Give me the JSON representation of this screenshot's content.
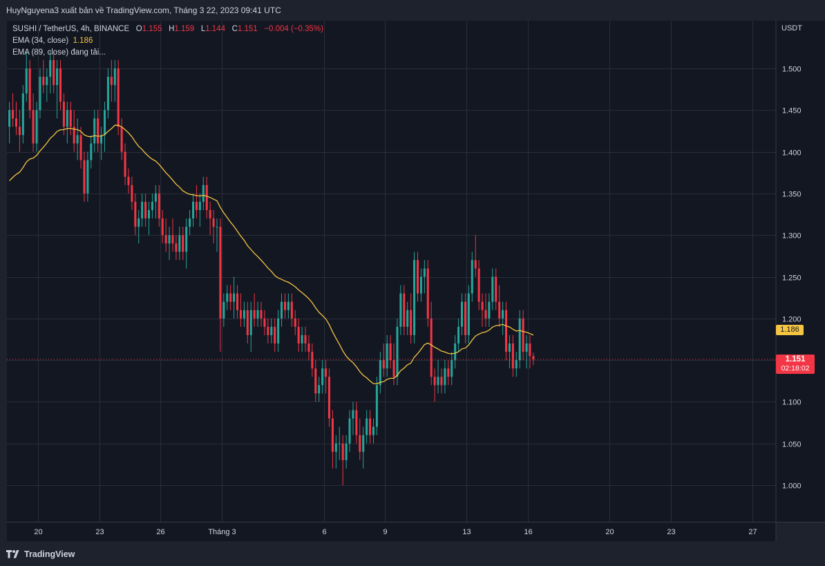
{
  "header": {
    "text": "HuyNguyena3 xuất bản về TradingView.com, Tháng 3 22, 2023 09:41 UTC"
  },
  "legend": {
    "symbol": "SUSHI / TetherUS, 4h, BINANCE",
    "o_label": "O",
    "o_value": "1.155",
    "h_label": "H",
    "h_value": "1.159",
    "l_label": "L",
    "l_value": "1.144",
    "c_label": "C",
    "c_value": "1.151",
    "change": "−0.004 (−0.35%)",
    "ema34_label": "EMA (34, close)",
    "ema34_value": "1.186",
    "ema89_label": "EMA (89, close) đang tải..."
  },
  "price_scale": {
    "currency": "USDT"
  },
  "tags": {
    "ema_value": "1.186",
    "last_price": "1.151",
    "countdown": "02:18:02"
  },
  "branding": {
    "logo_text": "TradingView"
  },
  "colors": {
    "up": "#26a69a",
    "down": "#f23645",
    "ema": "#f5c542",
    "background": "#131722",
    "grid": "#2a2e39"
  },
  "chart_data": {
    "type": "candlestick",
    "title": "SUSHI / TetherUS, 4h, BINANCE",
    "y_ticks": [
      1.0,
      1.05,
      1.1,
      1.15,
      1.2,
      1.25,
      1.3,
      1.35,
      1.4,
      1.45,
      1.5
    ],
    "y_tick_labels": [
      "1.000",
      "1.050",
      "1.100",
      "1.150",
      "1.200",
      "1.250",
      "1.300",
      "1.350",
      "1.400",
      "1.450",
      "1.500"
    ],
    "ylim": [
      0.958,
      1.568
    ],
    "x_ticks": [
      {
        "label": "20",
        "day": 0
      },
      {
        "label": "23",
        "day": 3
      },
      {
        "label": "26",
        "day": 6
      },
      {
        "label": "Tháng 3",
        "day": 9
      },
      {
        "label": "6",
        "day": 14
      },
      {
        "label": "9",
        "day": 17
      },
      {
        "label": "13",
        "day": 21
      },
      {
        "label": "16",
        "day": 24
      },
      {
        "label": "20",
        "day": 28
      },
      {
        "label": "23",
        "day": 31
      },
      {
        "label": "27",
        "day": 35
      }
    ],
    "candles_per_day": 6,
    "start_day_offset": -1.4,
    "last_price": 1.151,
    "ema34_last": 1.186,
    "candles": [
      [
        1.43,
        1.46,
        1.41,
        1.45
      ],
      [
        1.45,
        1.47,
        1.43,
        1.44
      ],
      [
        1.44,
        1.46,
        1.42,
        1.43
      ],
      [
        1.43,
        1.45,
        1.4,
        1.42
      ],
      [
        1.42,
        1.48,
        1.41,
        1.47
      ],
      [
        1.47,
        1.52,
        1.46,
        1.5
      ],
      [
        1.5,
        1.51,
        1.44,
        1.45
      ],
      [
        1.45,
        1.47,
        1.4,
        1.41
      ],
      [
        1.41,
        1.46,
        1.4,
        1.45
      ],
      [
        1.45,
        1.5,
        1.44,
        1.49
      ],
      [
        1.49,
        1.51,
        1.47,
        1.48
      ],
      [
        1.48,
        1.5,
        1.46,
        1.49
      ],
      [
        1.49,
        1.52,
        1.47,
        1.51
      ],
      [
        1.51,
        1.52,
        1.47,
        1.48
      ],
      [
        1.48,
        1.51,
        1.44,
        1.5
      ],
      [
        1.5,
        1.51,
        1.45,
        1.46
      ],
      [
        1.46,
        1.47,
        1.42,
        1.43
      ],
      [
        1.43,
        1.46,
        1.41,
        1.45
      ],
      [
        1.45,
        1.46,
        1.42,
        1.43
      ],
      [
        1.43,
        1.45,
        1.4,
        1.41
      ],
      [
        1.41,
        1.44,
        1.39,
        1.42
      ],
      [
        1.42,
        1.43,
        1.38,
        1.39
      ],
      [
        1.39,
        1.4,
        1.34,
        1.35
      ],
      [
        1.35,
        1.4,
        1.34,
        1.39
      ],
      [
        1.39,
        1.42,
        1.38,
        1.41
      ],
      [
        1.41,
        1.45,
        1.4,
        1.44
      ],
      [
        1.44,
        1.45,
        1.4,
        1.41
      ],
      [
        1.41,
        1.43,
        1.39,
        1.42
      ],
      [
        1.42,
        1.46,
        1.4,
        1.45
      ],
      [
        1.45,
        1.5,
        1.44,
        1.49
      ],
      [
        1.49,
        1.51,
        1.46,
        1.48
      ],
      [
        1.48,
        1.51,
        1.46,
        1.5
      ],
      [
        1.5,
        1.51,
        1.42,
        1.43
      ],
      [
        1.43,
        1.44,
        1.39,
        1.4
      ],
      [
        1.4,
        1.41,
        1.36,
        1.37
      ],
      [
        1.37,
        1.38,
        1.35,
        1.36
      ],
      [
        1.36,
        1.37,
        1.33,
        1.34
      ],
      [
        1.34,
        1.35,
        1.3,
        1.31
      ],
      [
        1.31,
        1.33,
        1.29,
        1.32
      ],
      [
        1.32,
        1.35,
        1.31,
        1.34
      ],
      [
        1.34,
        1.35,
        1.31,
        1.32
      ],
      [
        1.32,
        1.34,
        1.3,
        1.33
      ],
      [
        1.33,
        1.35,
        1.32,
        1.34
      ],
      [
        1.34,
        1.36,
        1.32,
        1.35
      ],
      [
        1.35,
        1.36,
        1.31,
        1.32
      ],
      [
        1.32,
        1.33,
        1.29,
        1.3
      ],
      [
        1.3,
        1.32,
        1.28,
        1.29
      ],
      [
        1.29,
        1.31,
        1.27,
        1.3
      ],
      [
        1.3,
        1.32,
        1.28,
        1.29
      ],
      [
        1.29,
        1.3,
        1.27,
        1.28
      ],
      [
        1.28,
        1.31,
        1.27,
        1.3
      ],
      [
        1.3,
        1.31,
        1.27,
        1.28
      ],
      [
        1.28,
        1.32,
        1.26,
        1.31
      ],
      [
        1.31,
        1.33,
        1.3,
        1.32
      ],
      [
        1.32,
        1.35,
        1.31,
        1.34
      ],
      [
        1.34,
        1.36,
        1.32,
        1.33
      ],
      [
        1.33,
        1.35,
        1.31,
        1.34
      ],
      [
        1.34,
        1.37,
        1.33,
        1.36
      ],
      [
        1.36,
        1.37,
        1.32,
        1.33
      ],
      [
        1.33,
        1.34,
        1.3,
        1.32
      ],
      [
        1.32,
        1.33,
        1.29,
        1.31
      ],
      [
        1.31,
        1.32,
        1.28,
        1.31
      ],
      [
        1.31,
        1.32,
        1.16,
        1.2
      ],
      [
        1.2,
        1.23,
        1.19,
        1.22
      ],
      [
        1.22,
        1.24,
        1.21,
        1.23
      ],
      [
        1.23,
        1.24,
        1.21,
        1.22
      ],
      [
        1.22,
        1.25,
        1.2,
        1.23
      ],
      [
        1.23,
        1.24,
        1.2,
        1.21
      ],
      [
        1.21,
        1.23,
        1.19,
        1.2
      ],
      [
        1.2,
        1.22,
        1.19,
        1.21
      ],
      [
        1.21,
        1.22,
        1.17,
        1.18
      ],
      [
        1.18,
        1.22,
        1.16,
        1.21
      ],
      [
        1.21,
        1.23,
        1.19,
        1.2
      ],
      [
        1.2,
        1.22,
        1.19,
        1.21
      ],
      [
        1.21,
        1.22,
        1.19,
        1.2
      ],
      [
        1.2,
        1.21,
        1.18,
        1.19
      ],
      [
        1.19,
        1.2,
        1.17,
        1.18
      ],
      [
        1.18,
        1.2,
        1.17,
        1.19
      ],
      [
        1.19,
        1.2,
        1.16,
        1.17
      ],
      [
        1.17,
        1.21,
        1.16,
        1.2
      ],
      [
        1.2,
        1.23,
        1.19,
        1.22
      ],
      [
        1.22,
        1.23,
        1.2,
        1.21
      ],
      [
        1.21,
        1.23,
        1.2,
        1.22
      ],
      [
        1.22,
        1.23,
        1.19,
        1.2
      ],
      [
        1.2,
        1.21,
        1.18,
        1.19
      ],
      [
        1.19,
        1.2,
        1.16,
        1.17
      ],
      [
        1.17,
        1.19,
        1.16,
        1.18
      ],
      [
        1.18,
        1.19,
        1.16,
        1.17
      ],
      [
        1.17,
        1.18,
        1.15,
        1.16
      ],
      [
        1.16,
        1.17,
        1.13,
        1.14
      ],
      [
        1.14,
        1.15,
        1.1,
        1.11
      ],
      [
        1.11,
        1.13,
        1.1,
        1.12
      ],
      [
        1.12,
        1.15,
        1.11,
        1.14
      ],
      [
        1.14,
        1.15,
        1.11,
        1.13
      ],
      [
        1.13,
        1.14,
        1.07,
        1.08
      ],
      [
        1.08,
        1.09,
        1.02,
        1.04
      ],
      [
        1.04,
        1.06,
        1.02,
        1.05
      ],
      [
        1.05,
        1.07,
        1.03,
        1.05
      ],
      [
        1.05,
        1.06,
        1.0,
        1.03
      ],
      [
        1.03,
        1.06,
        1.02,
        1.05
      ],
      [
        1.05,
        1.09,
        1.04,
        1.08
      ],
      [
        1.08,
        1.1,
        1.06,
        1.09
      ],
      [
        1.09,
        1.1,
        1.05,
        1.06
      ],
      [
        1.06,
        1.08,
        1.03,
        1.04
      ],
      [
        1.04,
        1.07,
        1.02,
        1.06
      ],
      [
        1.06,
        1.09,
        1.05,
        1.08
      ],
      [
        1.08,
        1.09,
        1.05,
        1.06
      ],
      [
        1.06,
        1.08,
        1.05,
        1.07
      ],
      [
        1.07,
        1.13,
        1.06,
        1.12
      ],
      [
        1.12,
        1.16,
        1.11,
        1.15
      ],
      [
        1.15,
        1.17,
        1.13,
        1.14
      ],
      [
        1.14,
        1.18,
        1.13,
        1.17
      ],
      [
        1.17,
        1.18,
        1.14,
        1.15
      ],
      [
        1.15,
        1.17,
        1.12,
        1.13
      ],
      [
        1.13,
        1.2,
        1.12,
        1.19
      ],
      [
        1.19,
        1.24,
        1.18,
        1.23
      ],
      [
        1.23,
        1.24,
        1.18,
        1.19
      ],
      [
        1.19,
        1.22,
        1.18,
        1.21
      ],
      [
        1.21,
        1.23,
        1.17,
        1.18
      ],
      [
        1.18,
        1.28,
        1.17,
        1.27
      ],
      [
        1.27,
        1.28,
        1.22,
        1.23
      ],
      [
        1.23,
        1.26,
        1.22,
        1.25
      ],
      [
        1.25,
        1.27,
        1.23,
        1.26
      ],
      [
        1.26,
        1.27,
        1.19,
        1.2
      ],
      [
        1.2,
        1.22,
        1.12,
        1.13
      ],
      [
        1.13,
        1.14,
        1.1,
        1.12
      ],
      [
        1.12,
        1.15,
        1.11,
        1.13
      ],
      [
        1.13,
        1.14,
        1.11,
        1.12
      ],
      [
        1.12,
        1.15,
        1.11,
        1.14
      ],
      [
        1.14,
        1.15,
        1.12,
        1.13
      ],
      [
        1.13,
        1.16,
        1.12,
        1.15
      ],
      [
        1.15,
        1.18,
        1.14,
        1.17
      ],
      [
        1.17,
        1.2,
        1.16,
        1.19
      ],
      [
        1.19,
        1.23,
        1.18,
        1.22
      ],
      [
        1.22,
        1.23,
        1.17,
        1.18
      ],
      [
        1.18,
        1.24,
        1.17,
        1.23
      ],
      [
        1.23,
        1.28,
        1.22,
        1.27
      ],
      [
        1.27,
        1.3,
        1.25,
        1.26
      ],
      [
        1.26,
        1.27,
        1.21,
        1.22
      ],
      [
        1.22,
        1.23,
        1.19,
        1.21
      ],
      [
        1.21,
        1.23,
        1.19,
        1.2
      ],
      [
        1.2,
        1.23,
        1.19,
        1.22
      ],
      [
        1.22,
        1.26,
        1.21,
        1.25
      ],
      [
        1.25,
        1.26,
        1.21,
        1.22
      ],
      [
        1.22,
        1.24,
        1.19,
        1.2
      ],
      [
        1.2,
        1.22,
        1.18,
        1.21
      ],
      [
        1.21,
        1.22,
        1.15,
        1.16
      ],
      [
        1.16,
        1.18,
        1.14,
        1.17
      ],
      [
        1.17,
        1.18,
        1.13,
        1.14
      ],
      [
        1.14,
        1.16,
        1.13,
        1.15
      ],
      [
        1.15,
        1.21,
        1.14,
        1.2
      ],
      [
        1.2,
        1.21,
        1.15,
        1.16
      ],
      [
        1.16,
        1.18,
        1.14,
        1.17
      ],
      [
        1.17,
        1.18,
        1.14,
        1.155
      ],
      [
        1.155,
        1.159,
        1.144,
        1.151
      ]
    ]
  }
}
